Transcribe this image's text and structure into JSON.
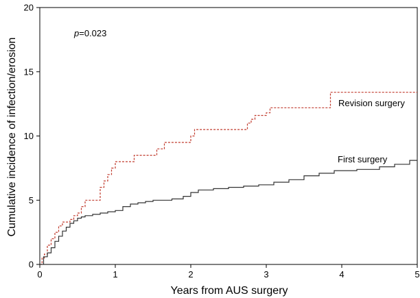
{
  "chart_data": {
    "type": "line",
    "xlabel": "Years from AUS surgery",
    "ylabel": "Cumulative incidence of infection/erosion",
    "xlim": [
      0,
      5
    ],
    "ylim": [
      0,
      20
    ],
    "x_ticks": [
      "0",
      "1",
      "2",
      "3",
      "4",
      "5"
    ],
    "y_ticks": [
      "0",
      "5",
      "10",
      "15",
      "20"
    ],
    "grid": false,
    "step": true,
    "annotation": {
      "p_label": "p",
      "p_value": "=0.023"
    },
    "colors": {
      "revision": "#c0392b",
      "first": "#333333"
    },
    "series": [
      {
        "name": "Revision surgery",
        "style": "dashed",
        "x": [
          0,
          0.03,
          0.06,
          0.1,
          0.15,
          0.2,
          0.25,
          0.3,
          0.4,
          0.45,
          0.5,
          0.55,
          0.6,
          0.8,
          0.85,
          0.9,
          0.95,
          1.0,
          1.2,
          1.25,
          1.5,
          1.55,
          1.6,
          1.65,
          1.95,
          2.0,
          2.05,
          2.7,
          2.75,
          2.8,
          2.85,
          3.0,
          3.05,
          3.8,
          3.85,
          5.0
        ],
        "y": [
          0,
          0.5,
          0.8,
          1.5,
          2.0,
          2.5,
          3.0,
          3.3,
          3.5,
          3.8,
          4.0,
          4.5,
          5.0,
          6.0,
          6.5,
          7.0,
          7.5,
          8.0,
          8.0,
          8.5,
          8.5,
          9.0,
          9.0,
          9.5,
          9.5,
          10.0,
          10.5,
          10.5,
          11.0,
          11.3,
          11.6,
          11.8,
          12.2,
          12.2,
          13.4,
          13.4
        ]
      },
      {
        "name": "First surgery",
        "style": "solid",
        "x": [
          0,
          0.05,
          0.1,
          0.15,
          0.2,
          0.25,
          0.3,
          0.35,
          0.4,
          0.45,
          0.5,
          0.55,
          0.6,
          0.7,
          0.8,
          0.9,
          1.0,
          1.1,
          1.2,
          1.3,
          1.4,
          1.5,
          1.75,
          1.9,
          2.0,
          2.1,
          2.3,
          2.5,
          2.7,
          2.9,
          3.1,
          3.3,
          3.5,
          3.7,
          3.9,
          4.2,
          4.5,
          4.7,
          4.9,
          5.0
        ],
        "y": [
          0,
          0.6,
          0.9,
          1.3,
          1.8,
          2.2,
          2.6,
          2.9,
          3.2,
          3.4,
          3.6,
          3.7,
          3.8,
          3.9,
          4.0,
          4.1,
          4.2,
          4.5,
          4.7,
          4.8,
          4.9,
          5.0,
          5.1,
          5.3,
          5.6,
          5.8,
          5.9,
          6.0,
          6.1,
          6.2,
          6.4,
          6.6,
          6.9,
          7.1,
          7.3,
          7.4,
          7.6,
          7.8,
          8.1,
          8.4
        ]
      }
    ]
  }
}
